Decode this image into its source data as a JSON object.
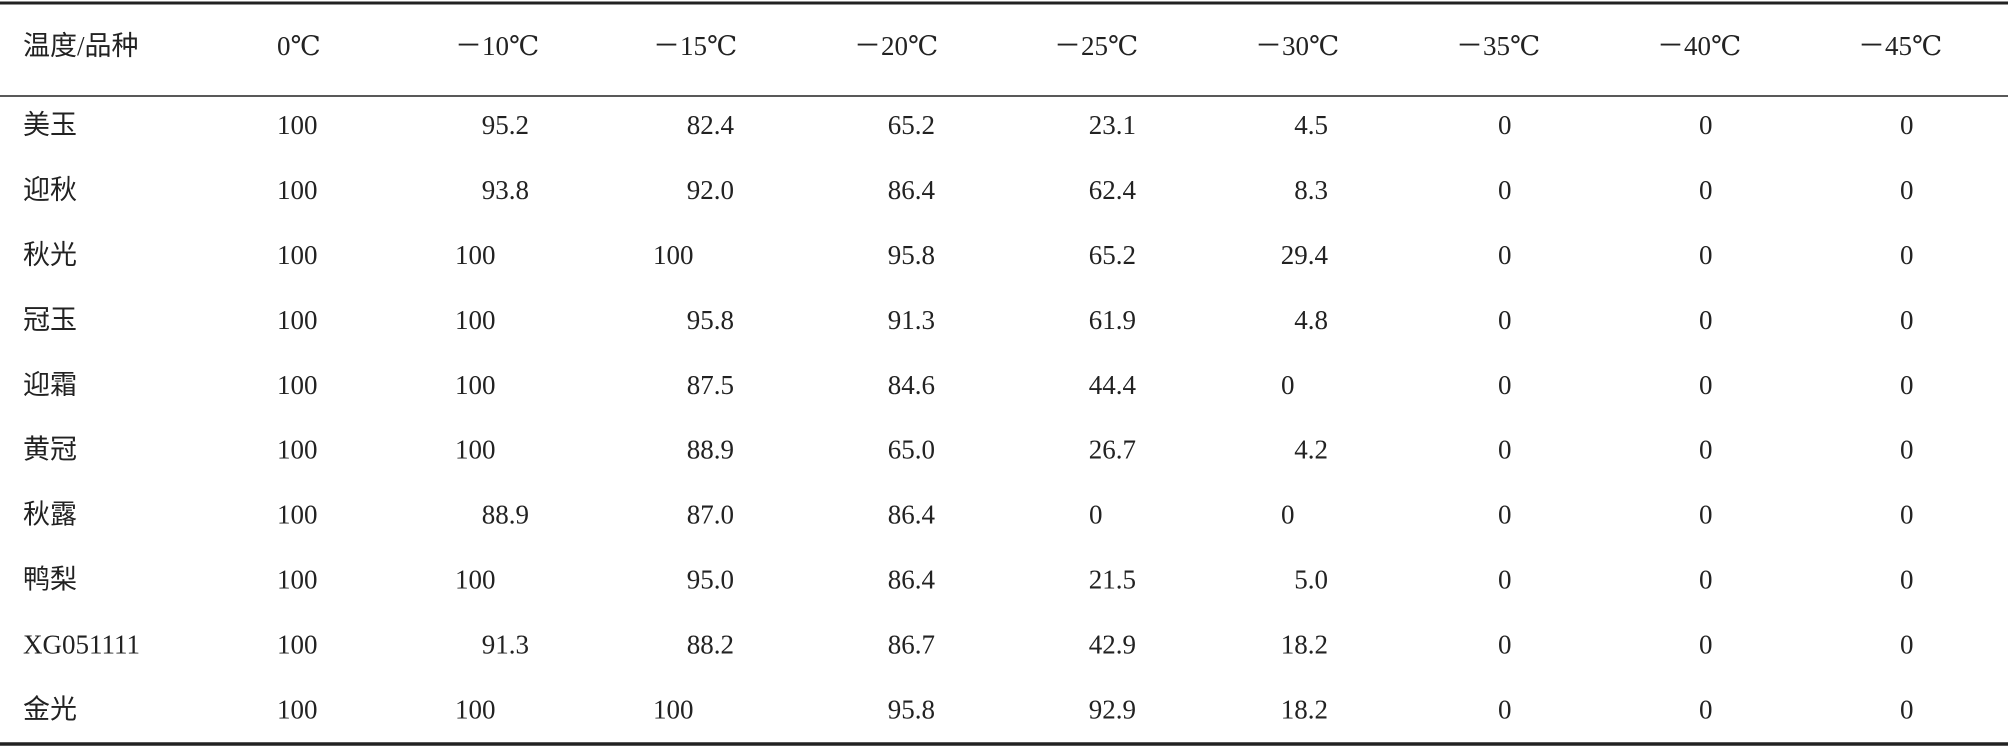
{
  "table": {
    "header": [
      "温度/品种",
      "0℃",
      "－10℃",
      "－15℃",
      "－20℃",
      "－25℃",
      "－30℃",
      "－35℃",
      "－40℃",
      "－45℃"
    ],
    "rows": [
      [
        "美玉",
        "100",
        "95.2",
        "82.4",
        "65.2",
        "23.1",
        "4.5",
        "0",
        "0",
        "0"
      ],
      [
        "迎秋",
        "100",
        "93.8",
        "92.0",
        "86.4",
        "62.4",
        "8.3",
        "0",
        "0",
        "0"
      ],
      [
        "秋光",
        "100",
        "100",
        "100",
        "95.8",
        "65.2",
        "29.4",
        "0",
        "0",
        "0"
      ],
      [
        "冠玉",
        "100",
        "100",
        "95.8",
        "91.3",
        "61.9",
        "4.8",
        "0",
        "0",
        "0"
      ],
      [
        "迎霜",
        "100",
        "100",
        "87.5",
        "84.6",
        "44.4",
        "0",
        "0",
        "0",
        "0"
      ],
      [
        "黄冠",
        "100",
        "100",
        "88.9",
        "65.0",
        "26.7",
        "4.2",
        "0",
        "0",
        "0"
      ],
      [
        "秋露",
        "100",
        "88.9",
        "87.0",
        "86.4",
        "0",
        "0",
        "0",
        "0",
        "0"
      ],
      [
        "鸭梨",
        "100",
        "100",
        "95.0",
        "86.4",
        "21.5",
        "5.0",
        "0",
        "0",
        "0"
      ],
      [
        "XG051111",
        "100",
        "91.3",
        "88.2",
        "86.7",
        "42.9",
        "18.2",
        "0",
        "0",
        "0"
      ],
      [
        "金光",
        "100",
        "100",
        "100",
        "95.8",
        "92.9",
        "18.2",
        "0",
        "0",
        "0"
      ]
    ]
  }
}
